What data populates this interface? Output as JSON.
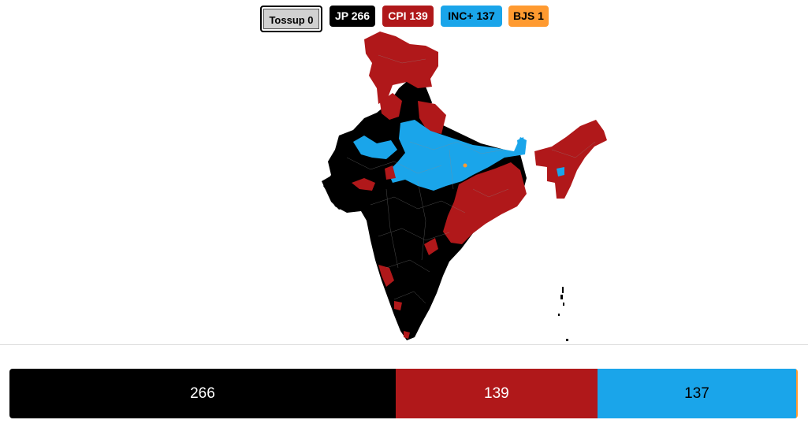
{
  "legend": {
    "tossup": {
      "label": "Tossup",
      "count": "0",
      "text": "Tossup 0"
    },
    "parties": [
      {
        "id": "jp",
        "text": "JP 266",
        "color": "#000000"
      },
      {
        "id": "cpi",
        "text": "CPI 139",
        "color": "#b0181a"
      },
      {
        "id": "inc",
        "text": "INC+ 137",
        "color": "#1aa5ea"
      },
      {
        "id": "bjs",
        "text": "BJS 1",
        "color": "#ff9a30"
      }
    ]
  },
  "map": {
    "region": "India",
    "regions": [
      {
        "name": "north-jammu-kashmir",
        "winner": "CPI"
      },
      {
        "name": "north-central-hills",
        "winner": "JP"
      },
      {
        "name": "gangetic-plain",
        "winner": "INC+"
      },
      {
        "name": "west-gujarat-rajasthan",
        "winner": "JP"
      },
      {
        "name": "east-coast",
        "winner": "CPI"
      },
      {
        "name": "northeast",
        "winner": "CPI"
      },
      {
        "name": "peninsula",
        "winner": "JP"
      }
    ]
  },
  "seat_bar": {
    "total": 543,
    "segments": [
      {
        "party": "JP",
        "value": 266,
        "label": "266",
        "color": "#000000"
      },
      {
        "party": "CPI",
        "value": 139,
        "label": "139",
        "color": "#b0181a"
      },
      {
        "party": "INC+",
        "value": 137,
        "label": "137",
        "color": "#1aa5ea"
      },
      {
        "party": "BJS",
        "value": 1,
        "label": "",
        "color": "#ff9a30"
      }
    ]
  }
}
